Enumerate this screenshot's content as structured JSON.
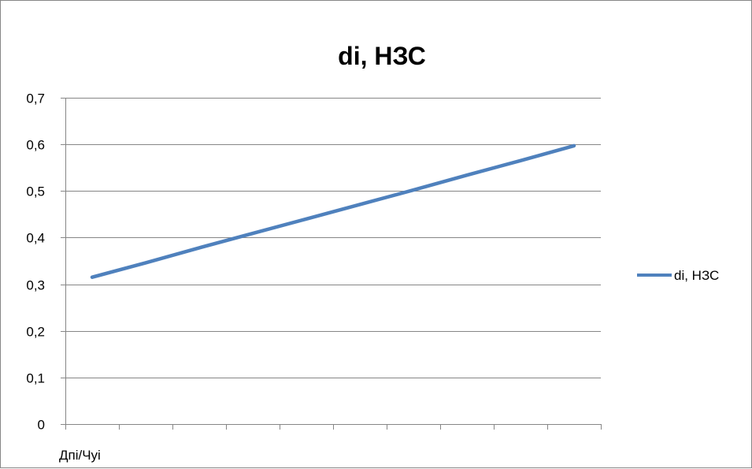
{
  "chart_data": {
    "type": "line",
    "title": "di, НЗС",
    "categories": [
      "Дпі/Чуі",
      "",
      "",
      "",
      "",
      "",
      "",
      "",
      "",
      ""
    ],
    "series": [
      {
        "name": "di, НЗС",
        "values": [
          0.315,
          0.346,
          0.378,
          0.409,
          0.44,
          0.471,
          0.502,
          0.534,
          0.565,
          0.597
        ],
        "color": "#4f81bd"
      }
    ],
    "ylim": [
      0,
      0.7
    ],
    "yticks": [
      "0",
      "0,1",
      "0,2",
      "0,3",
      "0,4",
      "0,5",
      "0,6",
      "0,7"
    ],
    "xlabel": "",
    "ylabel": "",
    "grid": true,
    "legend_position": "right"
  }
}
